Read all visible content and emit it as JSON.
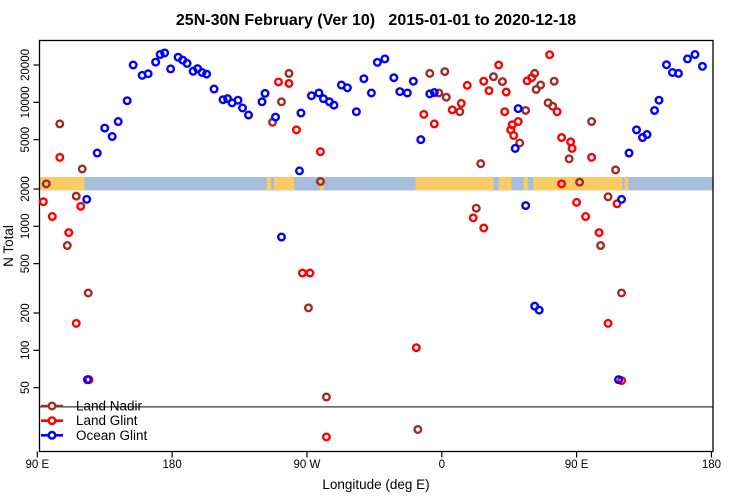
{
  "title": "25N-30N February (Ver 10)   2015-01-01 to 2020-12-18",
  "chart_data": {
    "type": "scatter",
    "title": "25N-30N February (Ver 10)   2015-01-01 to 2020-12-18",
    "xlabel": "Longitude (deg E)",
    "ylabel": "N Total",
    "x_scale": "linear",
    "y_scale": "log",
    "xlim": [
      88.5,
      542
    ],
    "ylim": [
      15,
      32000
    ],
    "grid": false,
    "legend_position": "bottom-left",
    "x_ticks": [
      {
        "value": 90,
        "label": "90 E"
      },
      {
        "value": 180,
        "label": "180"
      },
      {
        "value": 270,
        "label": "90 W"
      },
      {
        "value": 360,
        "label": "0"
      },
      {
        "value": 450,
        "label": "90 E"
      },
      {
        "value": 540,
        "label": "180"
      }
    ],
    "y_ticks": [
      {
        "value": 50,
        "label": "50"
      },
      {
        "value": 100,
        "label": "100"
      },
      {
        "value": 200,
        "label": "200"
      },
      {
        "value": 500,
        "label": "500"
      },
      {
        "value": 1000,
        "label": "1000"
      },
      {
        "value": 2000,
        "label": "2000"
      },
      {
        "value": 5000,
        "label": "5000"
      },
      {
        "value": 10000,
        "label": "10000"
      },
      {
        "value": 20000,
        "label": "20000"
      }
    ],
    "reference_line": {
      "n": 35,
      "color": "#3a3a3a"
    },
    "map_band": {
      "description": "land/ocean strip of 25N-30N latitude drawn across plot near N=2250",
      "n_center": 2250,
      "ocean_color": "#a6bedc",
      "land_color": "#f8cb66",
      "land_segments_lon": [
        [
          90,
          121.5
        ],
        [
          243,
          246
        ],
        [
          248,
          261.5
        ],
        [
          278.5,
          281
        ],
        [
          342.5,
          394.5
        ],
        [
          398,
          406.5
        ],
        [
          414.5,
          417.5
        ],
        [
          421,
          480.5
        ],
        [
          482,
          484.5
        ]
      ]
    },
    "series": [
      {
        "name": "Land Nadir",
        "color": "#a02c25",
        "points": [
          [
            105,
            6700
          ],
          [
            120,
            2900
          ],
          [
            96,
            2200
          ],
          [
            116,
            1750
          ],
          [
            110,
            700
          ],
          [
            124,
            290
          ],
          [
            258,
            17100
          ],
          [
            253,
            10100
          ],
          [
            247,
            6900
          ],
          [
            271,
            220
          ],
          [
            279,
            2300
          ],
          [
            283,
            42
          ],
          [
            344,
            23
          ],
          [
            352,
            17100
          ],
          [
            362,
            17700
          ],
          [
            358,
            11900
          ],
          [
            363,
            11000
          ],
          [
            372,
            8400
          ],
          [
            386,
            3200
          ],
          [
            383,
            1400
          ],
          [
            394.5,
            16100
          ],
          [
            400.5,
            14700
          ],
          [
            416,
            8600
          ],
          [
            412,
            4700
          ],
          [
            422,
            17100
          ],
          [
            426,
            13800
          ],
          [
            423,
            12700
          ],
          [
            435,
            14800
          ],
          [
            431,
            9900
          ],
          [
            434,
            9300
          ],
          [
            445,
            3500
          ],
          [
            460,
            7000
          ],
          [
            452,
            2270
          ],
          [
            471,
            1730
          ],
          [
            466,
            700
          ],
          [
            476,
            2850
          ],
          [
            480,
            290
          ]
        ]
      },
      {
        "name": "Land Glint",
        "color": "#ff0000",
        "points": [
          [
            105,
            3600
          ],
          [
            94,
            1580
          ],
          [
            100,
            1200
          ],
          [
            119,
            1450
          ],
          [
            111,
            890
          ],
          [
            116,
            165
          ],
          [
            124.5,
            58
          ],
          [
            251,
            14600
          ],
          [
            258,
            14200
          ],
          [
            263,
            6000
          ],
          [
            279,
            4000
          ],
          [
            267,
            420
          ],
          [
            272,
            420
          ],
          [
            283,
            20
          ],
          [
            343,
            105
          ],
          [
            348,
            8000
          ],
          [
            355,
            6700
          ],
          [
            367,
            8700
          ],
          [
            373,
            9800
          ],
          [
            377,
            13700
          ],
          [
            381,
            1170
          ],
          [
            388,
            970
          ],
          [
            388,
            14800
          ],
          [
            391.5,
            12400
          ],
          [
            398,
            20000
          ],
          [
            403,
            12100
          ],
          [
            402,
            8400
          ],
          [
            406,
            6000
          ],
          [
            407,
            6600
          ],
          [
            408,
            5400
          ],
          [
            411,
            7000
          ],
          [
            417,
            14900
          ],
          [
            420,
            15800
          ],
          [
            432,
            24200
          ],
          [
            437,
            8400
          ],
          [
            440,
            5200
          ],
          [
            446,
            4800
          ],
          [
            447,
            4250
          ],
          [
            460,
            3600
          ],
          [
            440,
            2200
          ],
          [
            450,
            1560
          ],
          [
            456,
            1200
          ],
          [
            465,
            890
          ],
          [
            471,
            165
          ],
          [
            477,
            1520
          ],
          [
            480,
            57
          ]
        ]
      },
      {
        "name": "Ocean Glint",
        "color": "#0000ff",
        "points": [
          [
            123,
            1650
          ],
          [
            123.5,
            58
          ],
          [
            130,
            3900
          ],
          [
            135,
            6200
          ],
          [
            140,
            5300
          ],
          [
            144,
            7000
          ],
          [
            150,
            10300
          ],
          [
            154,
            20000
          ],
          [
            160,
            16500
          ],
          [
            164,
            17000
          ],
          [
            169,
            21100
          ],
          [
            172,
            24300
          ],
          [
            175,
            25000
          ],
          [
            179,
            18600
          ],
          [
            184,
            23100
          ],
          [
            187,
            21900
          ],
          [
            190,
            20600
          ],
          [
            194,
            17800
          ],
          [
            197,
            18700
          ],
          [
            200,
            17400
          ],
          [
            203,
            16900
          ],
          [
            208,
            12800
          ],
          [
            214,
            10500
          ],
          [
            217,
            10700
          ],
          [
            220,
            9900
          ],
          [
            224,
            10400
          ],
          [
            227,
            9000
          ],
          [
            231,
            7900
          ],
          [
            240,
            10100
          ],
          [
            242,
            11800
          ],
          [
            249,
            7600
          ],
          [
            253,
            820
          ],
          [
            265,
            2800
          ],
          [
            266,
            8200
          ],
          [
            273,
            11300
          ],
          [
            278,
            11900
          ],
          [
            281,
            10700
          ],
          [
            285,
            10100
          ],
          [
            288,
            9500
          ],
          [
            293,
            13800
          ],
          [
            297,
            13100
          ],
          [
            303,
            8400
          ],
          [
            308,
            15500
          ],
          [
            313,
            11900
          ],
          [
            317,
            21000
          ],
          [
            322,
            22400
          ],
          [
            328,
            15800
          ],
          [
            332,
            12200
          ],
          [
            337,
            11900
          ],
          [
            341,
            14800
          ],
          [
            346,
            5000
          ],
          [
            352,
            11700
          ],
          [
            355,
            12000
          ],
          [
            409,
            4250
          ],
          [
            411,
            8900
          ],
          [
            416,
            1470
          ],
          [
            422,
            227
          ],
          [
            425,
            211
          ],
          [
            480,
            1650
          ],
          [
            478,
            58
          ],
          [
            485,
            3900
          ],
          [
            490,
            6000
          ],
          [
            494,
            5200
          ],
          [
            497,
            5500
          ],
          [
            502,
            8600
          ],
          [
            505,
            10400
          ],
          [
            510,
            20100
          ],
          [
            514,
            17400
          ],
          [
            518,
            17100
          ],
          [
            524,
            22400
          ],
          [
            529,
            24300
          ],
          [
            534,
            19500
          ]
        ]
      }
    ]
  },
  "legend": {
    "items": [
      {
        "label": "Land Nadir"
      },
      {
        "label": "Land Glint"
      },
      {
        "label": "Ocean Glint"
      }
    ]
  }
}
